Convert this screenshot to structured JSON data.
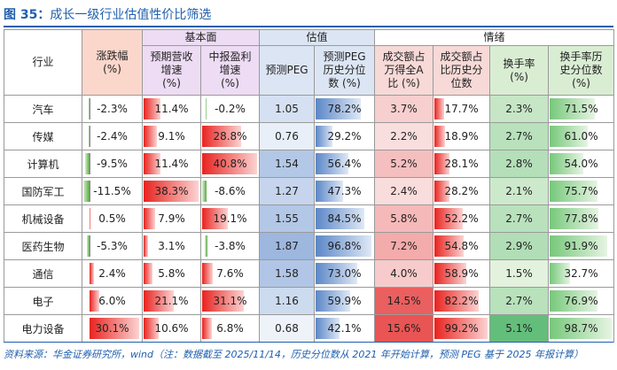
{
  "title": {
    "fig": "图 35：",
    "text": "成长一级行业估值性价比筛选"
  },
  "headers": {
    "industry": "行业",
    "chg": "涨跌幅\n(%)",
    "fundamental": "基本面",
    "valuation": "估值",
    "sentiment": "情绪",
    "rev": "预期营收\n增速\n(%)",
    "profit": "中报盈利\n增速\n(%)",
    "peg": "预测PEG",
    "peg_pct": "预测PEG\n历史分位\n数 (%)",
    "amt_share": "成交额占\n万得全A\n比 (%)",
    "amt_pct": "成交额占\n比历史分\n位数",
    "turnover": "换手率\n(%)",
    "turnover_pct": "换手率历\n史分位数\n(%)"
  },
  "rows": [
    {
      "name": "汽车",
      "chg": "-2.3%",
      "rev": "11.4%",
      "profit": "-0.2%",
      "peg": "1.05",
      "peg_pct": "78.2%",
      "amt_share": "3.7%",
      "amt_pct": "17.7%",
      "turnover": "2.3%",
      "turnover_pct": "71.5%"
    },
    {
      "name": "传媒",
      "chg": "-2.4%",
      "rev": "9.1%",
      "profit": "28.8%",
      "peg": "0.76",
      "peg_pct": "29.2%",
      "amt_share": "2.2%",
      "amt_pct": "18.9%",
      "turnover": "2.7%",
      "turnover_pct": "61.0%"
    },
    {
      "name": "计算机",
      "chg": "-9.5%",
      "rev": "11.4%",
      "profit": "40.8%",
      "peg": "1.54",
      "peg_pct": "56.4%",
      "amt_share": "5.2%",
      "amt_pct": "28.1%",
      "turnover": "2.8%",
      "turnover_pct": "54.0%"
    },
    {
      "name": "国防军工",
      "chg": "-11.5%",
      "rev": "38.3%",
      "profit": "-8.6%",
      "peg": "1.27",
      "peg_pct": "47.3%",
      "amt_share": "2.4%",
      "amt_pct": "28.2%",
      "turnover": "2.1%",
      "turnover_pct": "75.7%"
    },
    {
      "name": "机械设备",
      "chg": "0.5%",
      "rev": "7.9%",
      "profit": "19.1%",
      "peg": "1.55",
      "peg_pct": "84.5%",
      "amt_share": "5.8%",
      "amt_pct": "52.2%",
      "turnover": "2.7%",
      "turnover_pct": "77.8%"
    },
    {
      "name": "医药生物",
      "chg": "-5.3%",
      "rev": "3.1%",
      "profit": "-3.8%",
      "peg": "1.87",
      "peg_pct": "96.8%",
      "amt_share": "7.2%",
      "amt_pct": "54.8%",
      "turnover": "2.9%",
      "turnover_pct": "91.9%"
    },
    {
      "name": "通信",
      "chg": "2.4%",
      "rev": "5.8%",
      "profit": "7.6%",
      "peg": "1.58",
      "peg_pct": "73.0%",
      "amt_share": "4.0%",
      "amt_pct": "58.9%",
      "turnover": "1.5%",
      "turnover_pct": "32.7%"
    },
    {
      "name": "电子",
      "chg": "6.0%",
      "rev": "21.1%",
      "profit": "31.1%",
      "peg": "1.16",
      "peg_pct": "59.9%",
      "amt_share": "14.5%",
      "amt_pct": "82.2%",
      "turnover": "2.7%",
      "turnover_pct": "76.9%"
    },
    {
      "name": "电力设备",
      "chg": "30.1%",
      "rev": "10.6%",
      "profit": "6.8%",
      "peg": "0.68",
      "peg_pct": "42.1%",
      "amt_share": "15.6%",
      "amt_pct": "99.2%",
      "turnover": "5.1%",
      "turnover_pct": "98.7%"
    }
  ],
  "colors": {
    "red": "#e8231f",
    "green": "#5aa844",
    "blue": "#5b87c7",
    "pink_light": "#f9dede",
    "pink_mid": "#f19b9b",
    "pink_strong": "#e95454",
    "green_light": "#e2f2dc",
    "green_strong": "#63be7b"
  },
  "note": "资料来源：华金证券研究所，wind（注：数据截至 2025/11/14，历史分位数从 2021 年开始计算，预测 PEG 基于 2025 年报计算）"
}
